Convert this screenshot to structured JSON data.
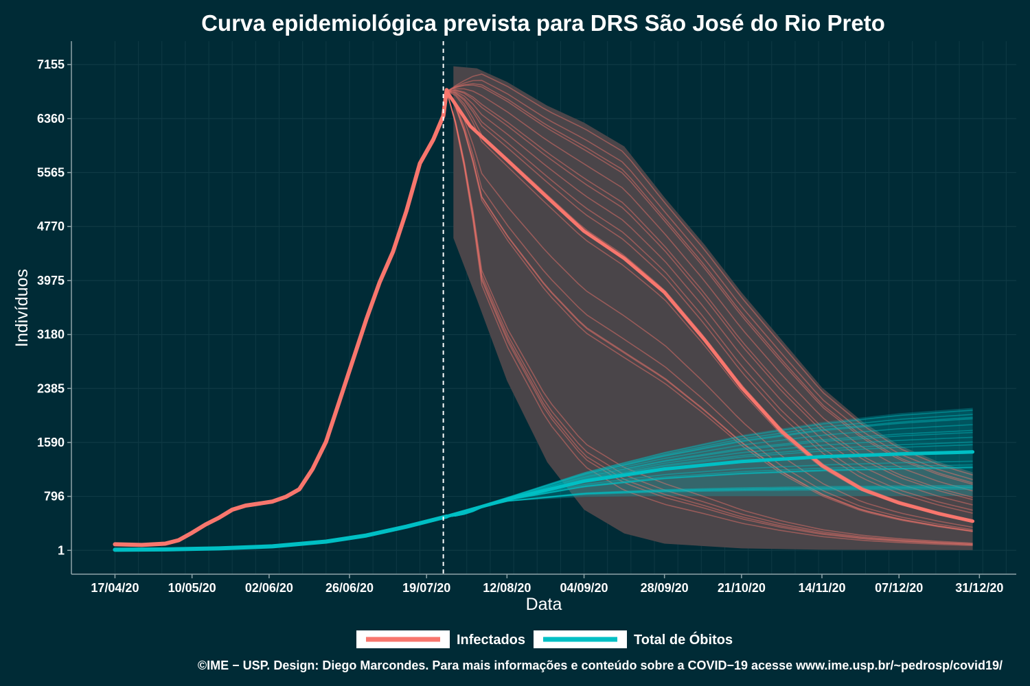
{
  "chart_data": {
    "type": "line",
    "title": "Curva epidemiológica prevista para DRS São José do Rio Preto",
    "xlabel": "Data",
    "ylabel": "Indivíduos",
    "x_ticks": [
      "17/04/20",
      "10/05/20",
      "02/06/20",
      "26/06/20",
      "19/07/20",
      "12/08/20",
      "04/09/20",
      "28/09/20",
      "21/10/20",
      "14/11/20",
      "07/12/20",
      "31/12/20"
    ],
    "y_ticks": [
      1,
      796,
      1590,
      2385,
      3180,
      3975,
      4770,
      5565,
      6360,
      7155
    ],
    "xlim": [
      "2020-04-04",
      "2021-01-11"
    ],
    "ylim": [
      -350,
      7500
    ],
    "forecast_start": "2020-07-24",
    "grid": true,
    "legend_position": "bottom",
    "colors": {
      "background": "#002b36",
      "infectados": "#f8766d",
      "obitos": "#00bfc4",
      "band": "#4a4549",
      "grid": "#0f3a45"
    },
    "series": [
      {
        "name": "Infectados",
        "observed": [
          [
            "2020-04-17",
            90
          ],
          [
            "2020-04-25",
            80
          ],
          [
            "2020-05-02",
            100
          ],
          [
            "2020-05-06",
            150
          ],
          [
            "2020-05-10",
            260
          ],
          [
            "2020-05-14",
            380
          ],
          [
            "2020-05-18",
            480
          ],
          [
            "2020-05-22",
            600
          ],
          [
            "2020-05-26",
            660
          ],
          [
            "2020-05-30",
            690
          ],
          [
            "2020-06-03",
            720
          ],
          [
            "2020-06-07",
            790
          ],
          [
            "2020-06-11",
            900
          ],
          [
            "2020-06-15",
            1200
          ],
          [
            "2020-06-19",
            1600
          ],
          [
            "2020-06-23",
            2200
          ],
          [
            "2020-06-27",
            2800
          ],
          [
            "2020-07-01",
            3400
          ],
          [
            "2020-07-05",
            3950
          ],
          [
            "2020-07-09",
            4400
          ],
          [
            "2020-07-13",
            5000
          ],
          [
            "2020-07-17",
            5700
          ],
          [
            "2020-07-21",
            6050
          ],
          [
            "2020-07-24",
            6400
          ],
          [
            "2020-07-25",
            6780
          ]
        ],
        "forecast_median": [
          [
            "2020-07-25",
            6760
          ],
          [
            "2020-08-01",
            6250
          ],
          [
            "2020-08-12",
            5750
          ],
          [
            "2020-08-24",
            5200
          ],
          [
            "2020-09-04",
            4700
          ],
          [
            "2020-09-16",
            4300
          ],
          [
            "2020-09-28",
            3800
          ],
          [
            "2020-10-10",
            3100
          ],
          [
            "2020-10-21",
            2400
          ],
          [
            "2020-11-02",
            1750
          ],
          [
            "2020-11-14",
            1250
          ],
          [
            "2020-11-26",
            900
          ],
          [
            "2020-12-07",
            700
          ],
          [
            "2020-12-19",
            540
          ],
          [
            "2020-12-29",
            430
          ]
        ],
        "band_upper": [
          [
            "2020-07-27",
            7130
          ],
          [
            "2020-08-03",
            7100
          ],
          [
            "2020-08-12",
            6900
          ],
          [
            "2020-08-24",
            6550
          ],
          [
            "2020-09-04",
            6300
          ],
          [
            "2020-09-16",
            5950
          ],
          [
            "2020-09-28",
            5200
          ],
          [
            "2020-10-10",
            4500
          ],
          [
            "2020-10-21",
            3800
          ],
          [
            "2020-11-02",
            3100
          ],
          [
            "2020-11-14",
            2400
          ],
          [
            "2020-11-26",
            1900
          ],
          [
            "2020-12-07",
            1550
          ],
          [
            "2020-12-19",
            1300
          ],
          [
            "2020-12-29",
            1150
          ]
        ],
        "band_lower": [
          [
            "2020-07-27",
            4600
          ],
          [
            "2020-08-03",
            3700
          ],
          [
            "2020-08-12",
            2500
          ],
          [
            "2020-08-24",
            1300
          ],
          [
            "2020-09-04",
            600
          ],
          [
            "2020-09-16",
            250
          ],
          [
            "2020-09-28",
            100
          ],
          [
            "2020-10-21",
            30
          ],
          [
            "2020-11-14",
            10
          ],
          [
            "2020-12-29",
            5
          ]
        ]
      },
      {
        "name": "Total de Óbitos",
        "observed": [
          [
            "2020-04-17",
            10
          ],
          [
            "2020-05-02",
            15
          ],
          [
            "2020-05-18",
            30
          ],
          [
            "2020-06-03",
            60
          ],
          [
            "2020-06-19",
            130
          ],
          [
            "2020-07-01",
            220
          ],
          [
            "2020-07-13",
            350
          ],
          [
            "2020-07-25",
            500
          ]
        ],
        "forecast_median": [
          [
            "2020-07-25",
            500
          ],
          [
            "2020-08-12",
            750
          ],
          [
            "2020-09-04",
            1020
          ],
          [
            "2020-09-28",
            1200
          ],
          [
            "2020-10-21",
            1310
          ],
          [
            "2020-11-14",
            1380
          ],
          [
            "2020-12-07",
            1420
          ],
          [
            "2020-12-29",
            1450
          ]
        ],
        "band_upper": [
          [
            "2020-07-25",
            500
          ],
          [
            "2020-08-12",
            780
          ],
          [
            "2020-09-04",
            1150
          ],
          [
            "2020-09-28",
            1450
          ],
          [
            "2020-10-21",
            1700
          ],
          [
            "2020-11-14",
            1890
          ],
          [
            "2020-12-07",
            2020
          ],
          [
            "2020-12-29",
            2100
          ]
        ],
        "band_lower": [
          [
            "2020-07-25",
            500
          ],
          [
            "2020-08-12",
            720
          ],
          [
            "2020-09-04",
            790
          ],
          [
            "2020-09-28",
            800
          ],
          [
            "2020-12-29",
            800
          ]
        ]
      }
    ]
  },
  "caption": "©IME − USP. Design: Diego Marcondes. Para mais informações e conteúdo sobre a COVID−19 acesse www.ime.usp.br/~pedrosp/covid19/"
}
